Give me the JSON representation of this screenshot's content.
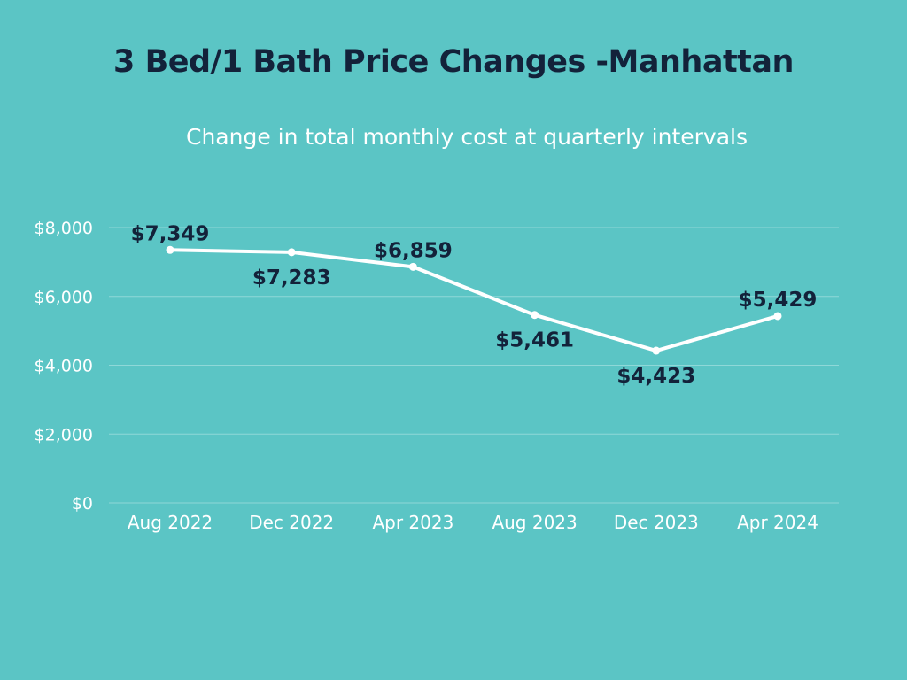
{
  "chart_data": {
    "type": "line",
    "title": "3 Bed/1 Bath Price Changes -Manhattan",
    "subtitle": "Change in total monthly cost at quarterly intervals",
    "categories": [
      "Aug 2022",
      "Dec 2022",
      "Apr 2023",
      "Aug 2023",
      "Dec 2023",
      "Apr 2024"
    ],
    "series": [
      {
        "name": "Total monthly cost",
        "values": [
          7349,
          7283,
          6859,
          5461,
          4423,
          5429
        ]
      }
    ],
    "data_labels": [
      "$7,349",
      "$7,283",
      "$6,859",
      "$5,461",
      "$4,423",
      "$5,429"
    ],
    "label_positions": [
      "above",
      "below",
      "above",
      "below",
      "below",
      "above"
    ],
    "y_ticks": [
      0,
      2000,
      4000,
      6000,
      8000
    ],
    "y_tick_labels": [
      "$0",
      "$2,000",
      "$4,000",
      "$6,000",
      "$8,000"
    ],
    "ylim": [
      0,
      8000
    ],
    "xlabel": "",
    "ylabel": "",
    "grid": true,
    "legend": "none"
  },
  "colors": {
    "background": "#5bc5c5",
    "line": "#ffffff",
    "gridline": "#8fd8d8",
    "title": "#13223a",
    "data_label": "#13223a"
  }
}
